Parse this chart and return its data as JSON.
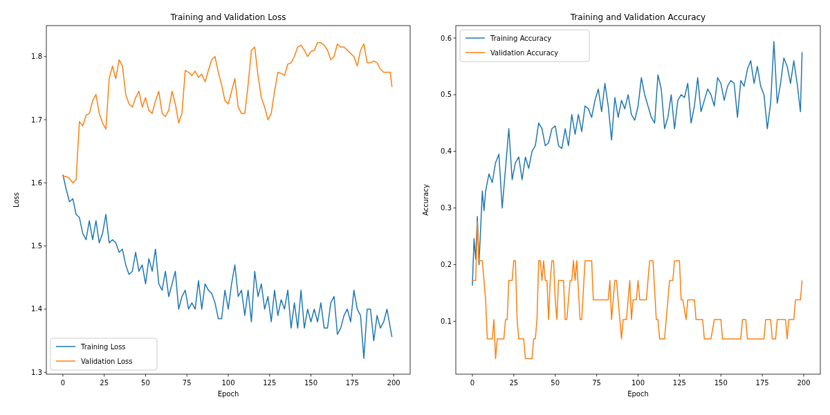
{
  "chart_data": [
    {
      "type": "line",
      "title": "Training and Validation Loss",
      "xlabel": "Epoch",
      "ylabel": "Loss",
      "xlim": [
        -10,
        210
      ],
      "xticks": [
        0,
        25,
        50,
        75,
        100,
        125,
        150,
        175,
        200
      ],
      "ylim": [
        1.297,
        1.849
      ],
      "yticks": [
        1.3,
        1.4,
        1.5,
        1.6,
        1.7,
        1.8
      ],
      "legend": "bottom left",
      "grid": false,
      "series": [
        {
          "name": "Training Loss",
          "color": "#1f77b4",
          "x": [
            0,
            2,
            4,
            6,
            8,
            10,
            12,
            14,
            16,
            18,
            20,
            22,
            24,
            26,
            28,
            30,
            32,
            34,
            36,
            38,
            40,
            42,
            44,
            46,
            48,
            50,
            52,
            54,
            56,
            58,
            60,
            62,
            64,
            66,
            68,
            70,
            72,
            74,
            76,
            78,
            80,
            82,
            84,
            86,
            88,
            90,
            92,
            94,
            96,
            98,
            100,
            102,
            104,
            106,
            108,
            110,
            112,
            114,
            116,
            118,
            120,
            122,
            124,
            126,
            128,
            130,
            132,
            134,
            136,
            138,
            140,
            142,
            144,
            146,
            148,
            150,
            152,
            154,
            156,
            158,
            160,
            162,
            164,
            166,
            168,
            170,
            172,
            174,
            176,
            178,
            180,
            182,
            184,
            186,
            188,
            190,
            192,
            194,
            196,
            198,
            199
          ],
          "values": [
            1.613,
            1.59,
            1.57,
            1.575,
            1.55,
            1.545,
            1.52,
            1.51,
            1.54,
            1.51,
            1.54,
            1.505,
            1.52,
            1.55,
            1.505,
            1.51,
            1.505,
            1.49,
            1.495,
            1.47,
            1.455,
            1.46,
            1.49,
            1.46,
            1.47,
            1.44,
            1.48,
            1.46,
            1.495,
            1.44,
            1.43,
            1.46,
            1.42,
            1.44,
            1.46,
            1.4,
            1.42,
            1.43,
            1.4,
            1.41,
            1.4,
            1.445,
            1.4,
            1.44,
            1.43,
            1.425,
            1.41,
            1.385,
            1.385,
            1.43,
            1.4,
            1.44,
            1.47,
            1.42,
            1.43,
            1.39,
            1.43,
            1.38,
            1.46,
            1.42,
            1.44,
            1.4,
            1.42,
            1.38,
            1.43,
            1.39,
            1.415,
            1.4,
            1.43,
            1.37,
            1.41,
            1.37,
            1.43,
            1.37,
            1.4,
            1.38,
            1.4,
            1.38,
            1.41,
            1.37,
            1.37,
            1.41,
            1.42,
            1.36,
            1.37,
            1.39,
            1.4,
            1.38,
            1.43,
            1.4,
            1.39,
            1.322,
            1.4,
            1.4,
            1.35,
            1.39,
            1.37,
            1.38,
            1.4,
            1.37,
            1.356
          ]
        },
        {
          "name": "Validation Loss",
          "color": "#ff7f0e",
          "x": [
            0,
            2,
            4,
            6,
            8,
            10,
            12,
            14,
            16,
            18,
            20,
            22,
            24,
            26,
            28,
            30,
            32,
            34,
            36,
            38,
            40,
            42,
            44,
            46,
            48,
            50,
            52,
            54,
            56,
            58,
            60,
            62,
            64,
            66,
            68,
            70,
            72,
            74,
            76,
            78,
            80,
            82,
            84,
            86,
            88,
            90,
            92,
            94,
            96,
            98,
            100,
            102,
            104,
            106,
            108,
            110,
            112,
            114,
            116,
            118,
            120,
            122,
            124,
            126,
            128,
            130,
            132,
            134,
            136,
            138,
            140,
            142,
            144,
            146,
            148,
            150,
            152,
            154,
            156,
            158,
            160,
            162,
            164,
            166,
            168,
            170,
            172,
            174,
            176,
            178,
            180,
            182,
            184,
            186,
            188,
            190,
            192,
            194,
            196,
            198,
            199
          ],
          "values": [
            1.61,
            1.61,
            1.607,
            1.6,
            1.605,
            1.697,
            1.69,
            1.707,
            1.71,
            1.73,
            1.74,
            1.71,
            1.695,
            1.685,
            1.765,
            1.785,
            1.765,
            1.795,
            1.785,
            1.74,
            1.725,
            1.72,
            1.735,
            1.745,
            1.72,
            1.735,
            1.715,
            1.71,
            1.73,
            1.745,
            1.71,
            1.705,
            1.715,
            1.745,
            1.725,
            1.695,
            1.71,
            1.778,
            1.775,
            1.77,
            1.777,
            1.767,
            1.772,
            1.76,
            1.778,
            1.795,
            1.8,
            1.775,
            1.755,
            1.73,
            1.725,
            1.745,
            1.765,
            1.72,
            1.71,
            1.71,
            1.755,
            1.81,
            1.815,
            1.77,
            1.735,
            1.72,
            1.7,
            1.71,
            1.745,
            1.775,
            1.773,
            1.77,
            1.788,
            1.79,
            1.8,
            1.815,
            1.818,
            1.81,
            1.8,
            1.808,
            1.81,
            1.822,
            1.822,
            1.818,
            1.81,
            1.795,
            1.8,
            1.82,
            1.815,
            1.815,
            1.81,
            1.805,
            1.8,
            1.785,
            1.81,
            1.82,
            1.79,
            1.79,
            1.793,
            1.79,
            1.78,
            1.775,
            1.775,
            1.775,
            1.752
          ]
        }
      ]
    },
    {
      "type": "line",
      "title": "Training and Validation Accuracy",
      "xlabel": "Epoch",
      "ylabel": "Accuracy",
      "xlim": [
        -10,
        210
      ],
      "xticks": [
        0,
        25,
        50,
        75,
        100,
        125,
        150,
        175,
        200
      ],
      "ylim": [
        0.0066,
        0.622
      ],
      "yticks": [
        0.1,
        0.2,
        0.3,
        0.4,
        0.5,
        0.6
      ],
      "legend": "top left",
      "grid": false,
      "series": [
        {
          "name": "Training Accuracy",
          "color": "#1f77b4",
          "x": [
            0,
            1,
            2,
            3,
            4,
            6,
            7,
            8,
            10,
            12,
            14,
            16,
            18,
            20,
            22,
            24,
            26,
            28,
            30,
            32,
            34,
            36,
            38,
            40,
            42,
            44,
            46,
            48,
            50,
            52,
            54,
            56,
            58,
            60,
            62,
            64,
            66,
            68,
            70,
            72,
            74,
            76,
            78,
            80,
            82,
            84,
            86,
            88,
            90,
            92,
            94,
            96,
            98,
            100,
            102,
            104,
            106,
            108,
            110,
            112,
            114,
            116,
            118,
            120,
            122,
            124,
            126,
            128,
            130,
            132,
            134,
            136,
            138,
            140,
            142,
            144,
            146,
            148,
            150,
            152,
            154,
            156,
            158,
            160,
            162,
            164,
            166,
            168,
            170,
            172,
            174,
            176,
            178,
            180,
            182,
            184,
            186,
            188,
            190,
            192,
            194,
            196,
            198,
            199
          ],
          "values": [
            0.163,
            0.246,
            0.21,
            0.285,
            0.2,
            0.33,
            0.295,
            0.33,
            0.36,
            0.345,
            0.38,
            0.395,
            0.3,
            0.37,
            0.44,
            0.35,
            0.38,
            0.39,
            0.35,
            0.39,
            0.37,
            0.4,
            0.41,
            0.45,
            0.44,
            0.41,
            0.415,
            0.44,
            0.445,
            0.41,
            0.405,
            0.44,
            0.41,
            0.465,
            0.43,
            0.465,
            0.435,
            0.48,
            0.475,
            0.46,
            0.49,
            0.51,
            0.47,
            0.52,
            0.48,
            0.42,
            0.495,
            0.46,
            0.49,
            0.475,
            0.5,
            0.465,
            0.455,
            0.48,
            0.53,
            0.5,
            0.48,
            0.46,
            0.45,
            0.535,
            0.51,
            0.44,
            0.46,
            0.5,
            0.44,
            0.49,
            0.5,
            0.495,
            0.52,
            0.45,
            0.48,
            0.53,
            0.47,
            0.49,
            0.51,
            0.5,
            0.48,
            0.53,
            0.52,
            0.49,
            0.515,
            0.525,
            0.52,
            0.46,
            0.525,
            0.515,
            0.545,
            0.56,
            0.52,
            0.55,
            0.515,
            0.5,
            0.44,
            0.485,
            0.594,
            0.485,
            0.52,
            0.565,
            0.55,
            0.52,
            0.56,
            0.52,
            0.47,
            0.575
          ]
        },
        {
          "name": "Validation Accuracy",
          "color": "#ff7f0e",
          "x": [
            0,
            2,
            3,
            4,
            6,
            8,
            9,
            12,
            13,
            14,
            15,
            19,
            20,
            21,
            22,
            24,
            25,
            26,
            27,
            28,
            31,
            32,
            36,
            37,
            38,
            39,
            40,
            41,
            42,
            43,
            44,
            45,
            46,
            47,
            48,
            49,
            50,
            51,
            52,
            55,
            56,
            57,
            59,
            60,
            61,
            62,
            63,
            65,
            66,
            68,
            72,
            73,
            82,
            83,
            84,
            86,
            87,
            89,
            90,
            91,
            93,
            95,
            96,
            97,
            99,
            100,
            101,
            105,
            107,
            109,
            111,
            112,
            113,
            116,
            119,
            121,
            122,
            125,
            126,
            127,
            129,
            130,
            134,
            135,
            139,
            140,
            144,
            146,
            150,
            151,
            162,
            163,
            165,
            166,
            176,
            177,
            180,
            181,
            183,
            184,
            189,
            190,
            191,
            194,
            195,
            198,
            199
          ],
          "values": [
            0.172,
            0.172,
            0.276,
            0.207,
            0.207,
            0.138,
            0.069,
            0.069,
            0.103,
            0.034,
            0.069,
            0.069,
            0.103,
            0.103,
            0.172,
            0.172,
            0.207,
            0.207,
            0.103,
            0.069,
            0.069,
            0.034,
            0.034,
            0.069,
            0.069,
            0.103,
            0.207,
            0.207,
            0.172,
            0.207,
            0.172,
            0.172,
            0.103,
            0.172,
            0.207,
            0.207,
            0.138,
            0.103,
            0.172,
            0.172,
            0.103,
            0.103,
            0.172,
            0.172,
            0.207,
            0.172,
            0.207,
            0.103,
            0.103,
            0.207,
            0.207,
            0.138,
            0.138,
            0.172,
            0.103,
            0.172,
            0.172,
            0.103,
            0.069,
            0.103,
            0.103,
            0.172,
            0.103,
            0.138,
            0.138,
            0.172,
            0.138,
            0.138,
            0.207,
            0.207,
            0.103,
            0.103,
            0.069,
            0.069,
            0.172,
            0.172,
            0.207,
            0.207,
            0.138,
            0.138,
            0.103,
            0.138,
            0.138,
            0.103,
            0.103,
            0.069,
            0.069,
            0.103,
            0.103,
            0.069,
            0.069,
            0.103,
            0.103,
            0.069,
            0.069,
            0.103,
            0.103,
            0.069,
            0.069,
            0.103,
            0.103,
            0.069,
            0.103,
            0.103,
            0.138,
            0.138,
            0.172
          ]
        }
      ]
    }
  ]
}
